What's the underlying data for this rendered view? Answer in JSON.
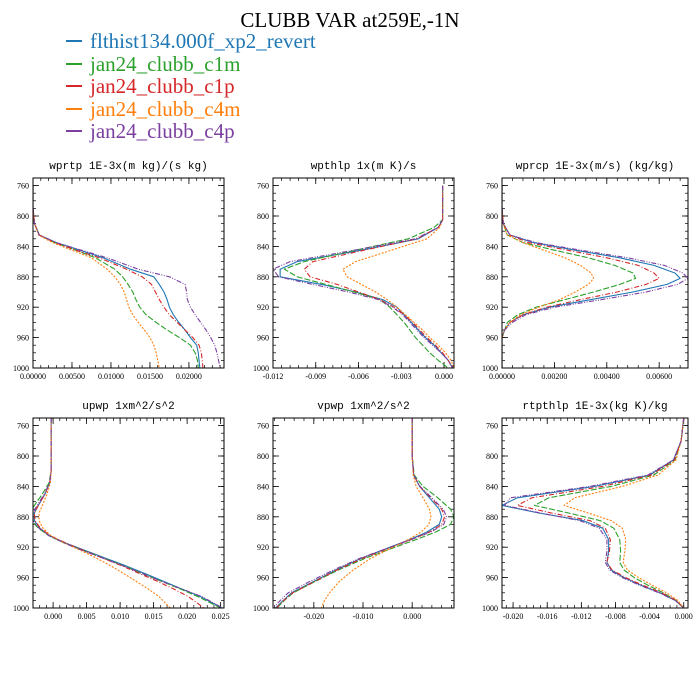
{
  "title": "CLUBB VAR at259E,-1N",
  "legend": [
    {
      "name": "flthist134.000f_xp2_revert",
      "color": "#1f77b4"
    },
    {
      "name": "jan24_clubb_c1m",
      "color": "#2ca02c"
    },
    {
      "name": "jan24_clubb_c1p",
      "color": "#d62728"
    },
    {
      "name": "jan24_clubb_c4m",
      "color": "#ff7f0e"
    },
    {
      "name": "jan24_clubb_c4p",
      "color": "#7b3fa0"
    }
  ],
  "chart_data": [
    {
      "type": "line",
      "title": "wprtp  1E-3x(m kg)/(s kg)",
      "xlim": [
        0,
        0.0245
      ],
      "ylim": [
        1000,
        750
      ],
      "xticks": [
        0,
        0.005,
        0.01,
        0.015,
        0.02
      ],
      "xtick_labels": [
        "0.00000",
        "0.00500",
        "0.01000",
        "0.01500",
        "0.02000"
      ],
      "yticks": [
        760,
        800,
        840,
        880,
        920,
        960,
        1000
      ],
      "y": [
        760,
        790,
        810,
        825,
        835,
        845,
        855,
        870,
        880,
        890,
        900,
        910,
        920,
        930,
        940,
        950,
        960,
        970,
        980,
        990,
        1000
      ],
      "series": [
        {
          "values": [
            0,
            0,
            0.0002,
            0.0008,
            0.003,
            0.006,
            0.009,
            0.0125,
            0.0155,
            0.0162,
            0.0168,
            0.0172,
            0.0175,
            0.018,
            0.0187,
            0.0195,
            0.0202,
            0.021,
            0.0212,
            0.0213,
            0.0214
          ]
        },
        {
          "values": [
            0,
            0,
            0.0002,
            0.0008,
            0.0028,
            0.0055,
            0.008,
            0.0105,
            0.0115,
            0.0122,
            0.0128,
            0.0132,
            0.0137,
            0.0145,
            0.0158,
            0.0172,
            0.0188,
            0.0202,
            0.0208,
            0.0211,
            0.0212
          ]
        },
        {
          "values": [
            0,
            0,
            0.0002,
            0.0008,
            0.0028,
            0.0055,
            0.0085,
            0.012,
            0.014,
            0.0152,
            0.0157,
            0.0162,
            0.0168,
            0.0175,
            0.0185,
            0.0195,
            0.0205,
            0.0213,
            0.0216,
            0.0217,
            0.0218
          ]
        },
        {
          "values": [
            0,
            0,
            0.0002,
            0.0007,
            0.0025,
            0.005,
            0.0075,
            0.0095,
            0.0105,
            0.0112,
            0.0117,
            0.012,
            0.0123,
            0.0128,
            0.0135,
            0.0143,
            0.015,
            0.0155,
            0.0158,
            0.016,
            0.0162
          ]
        },
        {
          "values": [
            0,
            0,
            0.0002,
            0.0008,
            0.003,
            0.0062,
            0.0095,
            0.0135,
            0.0175,
            0.0195,
            0.0197,
            0.0198,
            0.0202,
            0.0208,
            0.0215,
            0.0222,
            0.0228,
            0.0233,
            0.0236,
            0.0238,
            0.024
          ]
        }
      ]
    },
    {
      "type": "line",
      "title": "wpthlp  1x(m K)/s",
      "xlim": [
        -0.012,
        0.0007
      ],
      "ylim": [
        1000,
        750
      ],
      "xticks": [
        -0.012,
        -0.009,
        -0.006,
        -0.003,
        0
      ],
      "xtick_labels": [
        "-0.012",
        "-0.009",
        "-0.006",
        "-0.003",
        "0.000"
      ],
      "yticks": [
        760,
        800,
        840,
        880,
        920,
        960,
        1000
      ],
      "y": [
        760,
        790,
        805,
        815,
        830,
        845,
        860,
        870,
        880,
        890,
        900,
        910,
        920,
        930,
        940,
        950,
        960,
        970,
        980,
        990,
        1000
      ],
      "series": [
        {
          "values": [
            -0.0001,
            -0.0001,
            -0.0001,
            -0.0004,
            -0.0018,
            -0.0058,
            -0.0103,
            -0.0115,
            -0.0115,
            -0.0086,
            -0.0062,
            -0.0043,
            -0.0033,
            -0.0028,
            -0.0023,
            -0.0018,
            -0.0013,
            -0.0007,
            -0.0002,
            0.0003,
            0.0006
          ]
        },
        {
          "values": [
            -0.0001,
            -0.0001,
            -0.0001,
            -0.0007,
            -0.0025,
            -0.0062,
            -0.0098,
            -0.0112,
            -0.0103,
            -0.0083,
            -0.0063,
            -0.0045,
            -0.0038,
            -0.0033,
            -0.0028,
            -0.0024,
            -0.002,
            -0.0015,
            -0.001,
            -0.0004,
            0.0003
          ]
        },
        {
          "values": [
            -0.0001,
            -0.0001,
            -0.0001,
            -0.0004,
            -0.0019,
            -0.0056,
            -0.0092,
            -0.0098,
            -0.0094,
            -0.0075,
            -0.006,
            -0.0045,
            -0.0035,
            -0.0028,
            -0.0022,
            -0.0017,
            -0.0012,
            -0.0006,
            -0.0001,
            0.0003,
            0.0006
          ]
        },
        {
          "values": [
            -0.0001,
            -0.0001,
            -0.0001,
            -0.0003,
            -0.0012,
            -0.0037,
            -0.0062,
            -0.0071,
            -0.0068,
            -0.0058,
            -0.0048,
            -0.004,
            -0.0033,
            -0.0027,
            -0.0021,
            -0.0015,
            -0.001,
            -0.0004,
            0.0001,
            0.0005,
            0.0007
          ]
        },
        {
          "values": [
            -0.0001,
            -0.0001,
            -0.0001,
            -0.0004,
            -0.002,
            -0.0063,
            -0.0108,
            -0.012,
            -0.0116,
            -0.0092,
            -0.0067,
            -0.0046,
            -0.0036,
            -0.0029,
            -0.0024,
            -0.0019,
            -0.0014,
            -0.0008,
            -0.0002,
            0.0003,
            0.0006
          ]
        }
      ]
    },
    {
      "type": "line",
      "title": "wprcp  1E-3x(m/s) (kg/kg)",
      "xlim": [
        0,
        0.0071
      ],
      "ylim": [
        1000,
        750
      ],
      "xticks": [
        0,
        0.002,
        0.004,
        0.006
      ],
      "xtick_labels": [
        "0.00000",
        "0.00200",
        "0.00400",
        "0.00600"
      ],
      "yticks": [
        760,
        800,
        840,
        880,
        920,
        960,
        1000
      ],
      "y": [
        760,
        790,
        810,
        825,
        835,
        845,
        855,
        865,
        875,
        882,
        890,
        900,
        910,
        920,
        930,
        940,
        950,
        960,
        970,
        985,
        1000
      ],
      "series": [
        {
          "values": [
            0,
            0,
            5e-05,
            0.0003,
            0.0012,
            0.0028,
            0.0045,
            0.0058,
            0.0066,
            0.0068,
            0.0063,
            0.005,
            0.0034,
            0.0018,
            0.0008,
            0.0003,
            0.0001,
            0,
            0,
            0,
            0
          ]
        },
        {
          "values": [
            0,
            0,
            5e-05,
            0.0002,
            0.0008,
            0.002,
            0.0033,
            0.0043,
            0.005,
            0.0051,
            0.0045,
            0.0035,
            0.0024,
            0.0013,
            0.0006,
            0.0002,
            0.0001,
            0,
            0,
            0,
            0
          ]
        },
        {
          "values": [
            0,
            0,
            5e-05,
            0.0003,
            0.001,
            0.0025,
            0.004,
            0.0052,
            0.0058,
            0.006,
            0.0055,
            0.0044,
            0.003,
            0.0017,
            0.0008,
            0.0003,
            0.0001,
            0,
            0,
            0,
            0
          ]
        },
        {
          "values": [
            0,
            0,
            5e-05,
            0.0002,
            0.0008,
            0.0016,
            0.0024,
            0.003,
            0.0034,
            0.0035,
            0.0033,
            0.0028,
            0.0022,
            0.0014,
            0.0007,
            0.0003,
            0.0001,
            0,
            0,
            0,
            0
          ]
        },
        {
          "values": [
            0,
            0,
            5e-05,
            0.0003,
            0.0013,
            0.003,
            0.0048,
            0.0062,
            0.0069,
            0.0071,
            0.0067,
            0.0055,
            0.0038,
            0.002,
            0.0009,
            0.0004,
            0.0001,
            0,
            0,
            0,
            0
          ]
        }
      ]
    },
    {
      "type": "line",
      "title": "upwp  1xm^2/s^2",
      "xlim": [
        -0.003,
        0.0255
      ],
      "ylim": [
        1000,
        750
      ],
      "xticks": [
        0,
        0.005,
        0.01,
        0.015,
        0.02,
        0.025
      ],
      "xtick_labels": [
        "0.000",
        "0.005",
        "0.010",
        "0.015",
        "0.020",
        "0.025"
      ],
      "yticks": [
        760,
        800,
        840,
        880,
        920,
        960,
        1000
      ],
      "y": [
        750,
        790,
        820,
        835,
        850,
        865,
        875,
        885,
        895,
        905,
        915,
        925,
        935,
        945,
        955,
        965,
        975,
        985,
        1000
      ],
      "series": [
        {
          "values": [
            -0.0003,
            -0.0003,
            -0.0003,
            -0.0005,
            -0.0012,
            -0.0022,
            -0.0028,
            -0.0028,
            -0.002,
            -0.0005,
            0.002,
            0.005,
            0.008,
            0.011,
            0.0138,
            0.0165,
            0.0192,
            0.022,
            0.0252
          ]
        },
        {
          "values": [
            -0.0003,
            -0.0003,
            -0.0003,
            -0.0006,
            -0.0016,
            -0.0028,
            -0.0034,
            -0.0032,
            -0.0022,
            -0.0006,
            0.0018,
            0.0047,
            0.0077,
            0.0107,
            0.0134,
            0.0162,
            0.019,
            0.0216,
            0.025
          ]
        },
        {
          "values": [
            -0.0003,
            -0.0003,
            -0.0003,
            -0.0005,
            -0.0012,
            -0.0022,
            -0.0028,
            -0.0027,
            -0.0019,
            -0.0004,
            0.002,
            0.0048,
            0.0076,
            0.0104,
            0.013,
            0.0156,
            0.018,
            0.0202,
            0.0225
          ]
        },
        {
          "values": [
            -0.0003,
            -0.0003,
            -0.0003,
            -0.0004,
            -0.0009,
            -0.0016,
            -0.0021,
            -0.0021,
            -0.0015,
            -0.0003,
            0.0018,
            0.0043,
            0.0066,
            0.0087,
            0.0106,
            0.0124,
            0.0142,
            0.0158,
            0.0175
          ]
        },
        {
          "values": [
            -0.0003,
            -0.0003,
            -0.0003,
            -0.0005,
            -0.0013,
            -0.0024,
            -0.003,
            -0.003,
            -0.0021,
            -0.0006,
            0.0018,
            0.0046,
            0.0076,
            0.0106,
            0.0134,
            0.0162,
            0.0192,
            0.0222,
            0.0253
          ]
        }
      ]
    },
    {
      "type": "line",
      "title": "vpwp  1xm^2/s^2",
      "xlim": [
        -0.0283,
        0.0085
      ],
      "ylim": [
        1000,
        750
      ],
      "xticks": [
        -0.02,
        -0.01,
        0
      ],
      "xtick_labels": [
        "-0.020",
        "-0.010",
        "0.000"
      ],
      "yticks": [
        760,
        800,
        840,
        880,
        920,
        960,
        1000
      ],
      "y": [
        750,
        800,
        825,
        840,
        855,
        870,
        880,
        890,
        900,
        910,
        920,
        935,
        950,
        965,
        980,
        990,
        1000
      ],
      "series": [
        {
          "values": [
            0,
            0,
            0.0003,
            0.0015,
            0.0035,
            0.0055,
            0.006,
            0.0055,
            0.003,
            -0.0005,
            -0.0045,
            -0.0105,
            -0.0155,
            -0.02,
            -0.0245,
            -0.0262,
            -0.0278
          ]
        },
        {
          "values": [
            0,
            0,
            0.0004,
            0.0022,
            0.0052,
            0.0078,
            0.0085,
            0.0078,
            0.0048,
            0.0008,
            -0.0035,
            -0.0097,
            -0.015,
            -0.0197,
            -0.0242,
            -0.026,
            -0.0275
          ]
        },
        {
          "values": [
            0,
            0,
            0.0003,
            0.0015,
            0.0038,
            0.006,
            0.0066,
            0.006,
            0.0035,
            -0.0002,
            -0.0042,
            -0.0102,
            -0.0153,
            -0.0198,
            -0.0243,
            -0.0261,
            -0.0276
          ]
        },
        {
          "values": [
            0,
            0,
            0.0002,
            0.0008,
            0.0022,
            0.0035,
            0.0038,
            0.0034,
            0.0018,
            -0.0008,
            -0.004,
            -0.0085,
            -0.012,
            -0.0148,
            -0.0168,
            -0.0178,
            -0.0185
          ]
        },
        {
          "values": [
            0,
            0,
            0.0003,
            0.0016,
            0.004,
            0.0063,
            0.007,
            0.0064,
            0.0038,
            -0.0002,
            -0.0045,
            -0.0108,
            -0.016,
            -0.0208,
            -0.0252,
            -0.0268,
            -0.0283
          ]
        }
      ]
    },
    {
      "type": "line",
      "title": "rtpthlp  1E-3x(kg K)/kg",
      "xlim": [
        -0.0213,
        0.0005
      ],
      "ylim": [
        1000,
        750
      ],
      "xticks": [
        -0.02,
        -0.016,
        -0.012,
        -0.008,
        -0.004,
        0
      ],
      "xtick_labels": [
        "-0.020",
        "-0.016",
        "-0.012",
        "-0.008",
        "-0.004",
        "0.000"
      ],
      "yticks": [
        760,
        800,
        840,
        880,
        920,
        960,
        1000
      ],
      "y": [
        750,
        780,
        805,
        825,
        840,
        855,
        865,
        875,
        885,
        895,
        910,
        925,
        940,
        950,
        960,
        970,
        980,
        990,
        1000
      ],
      "series": [
        {
          "values": [
            0,
            -0.0003,
            -0.0012,
            -0.004,
            -0.0105,
            -0.0195,
            -0.0213,
            -0.017,
            -0.0118,
            -0.0095,
            -0.0088,
            -0.0088,
            -0.009,
            -0.0085,
            -0.007,
            -0.005,
            -0.0028,
            -0.001,
            0
          ]
        },
        {
          "values": [
            0,
            -0.0003,
            -0.001,
            -0.0035,
            -0.0085,
            -0.0158,
            -0.0175,
            -0.0135,
            -0.0098,
            -0.0082,
            -0.0075,
            -0.0074,
            -0.0075,
            -0.007,
            -0.0058,
            -0.0042,
            -0.0024,
            -0.0009,
            0
          ]
        },
        {
          "values": [
            0,
            -0.0003,
            -0.0011,
            -0.0038,
            -0.0095,
            -0.0178,
            -0.0195,
            -0.0155,
            -0.011,
            -0.0092,
            -0.0086,
            -0.0087,
            -0.009,
            -0.0084,
            -0.0068,
            -0.0048,
            -0.0026,
            -0.0009,
            0
          ]
        },
        {
          "values": [
            0,
            -0.0003,
            -0.0009,
            -0.003,
            -0.0072,
            -0.0128,
            -0.014,
            -0.0112,
            -0.0085,
            -0.0072,
            -0.0068,
            -0.0069,
            -0.0071,
            -0.0066,
            -0.0053,
            -0.0037,
            -0.002,
            -0.0007,
            0
          ]
        },
        {
          "values": [
            0,
            -0.0003,
            -0.0012,
            -0.0042,
            -0.011,
            -0.0203,
            -0.021,
            -0.0168,
            -0.0122,
            -0.0099,
            -0.009,
            -0.009,
            -0.0092,
            -0.0087,
            -0.0072,
            -0.0052,
            -0.0029,
            -0.001,
            0
          ]
        }
      ]
    }
  ]
}
